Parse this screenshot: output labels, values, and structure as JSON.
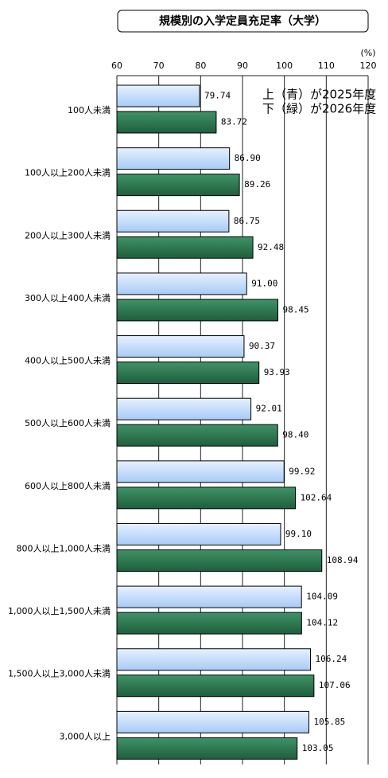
{
  "chart_data": {
    "type": "bar",
    "orientation": "horizontal",
    "title": "規模別の入学定員充足率（大学）",
    "unit": "(%)",
    "legend_lines": [
      "上（青）が2025年度",
      "下（緑）が2026年度"
    ],
    "categories": [
      "100人未満",
      "100人以上200人未満",
      "200人以上300人未満",
      "300人以上400人未満",
      "400人以上500人未満",
      "500人以上600人未満",
      "600人以上800人未満",
      "800人以上1,000人未満",
      "1,000人以上1,500人未満",
      "1,500人以上3,000人未満",
      "3,000人以上"
    ],
    "series": [
      {
        "name": "2025年度",
        "color": "#b9d7fb",
        "values": [
          79.74,
          86.9,
          86.75,
          91.0,
          90.37,
          92.01,
          99.92,
          99.1,
          104.09,
          106.24,
          105.85
        ],
        "value_labels": [
          "79.74",
          "86.90",
          "86.75",
          "91.00",
          "90.37",
          "92.01",
          "99.92",
          "99.10",
          "104.09",
          "106.24",
          "105.85"
        ]
      },
      {
        "name": "2026年度",
        "color": "#2f7a53",
        "values": [
          83.72,
          89.26,
          92.48,
          98.45,
          93.93,
          98.4,
          102.64,
          108.94,
          104.12,
          107.06,
          103.05
        ],
        "value_labels": [
          "83.72",
          "89.26",
          "92.48",
          "98.45",
          "93.93",
          "98.40",
          "102.64",
          "108.94",
          "104.12",
          "107.06",
          "103.05"
        ]
      }
    ],
    "xlim": [
      60,
      120
    ],
    "xticks": [
      60,
      70,
      80,
      90,
      100,
      110,
      120
    ],
    "grid": true
  }
}
